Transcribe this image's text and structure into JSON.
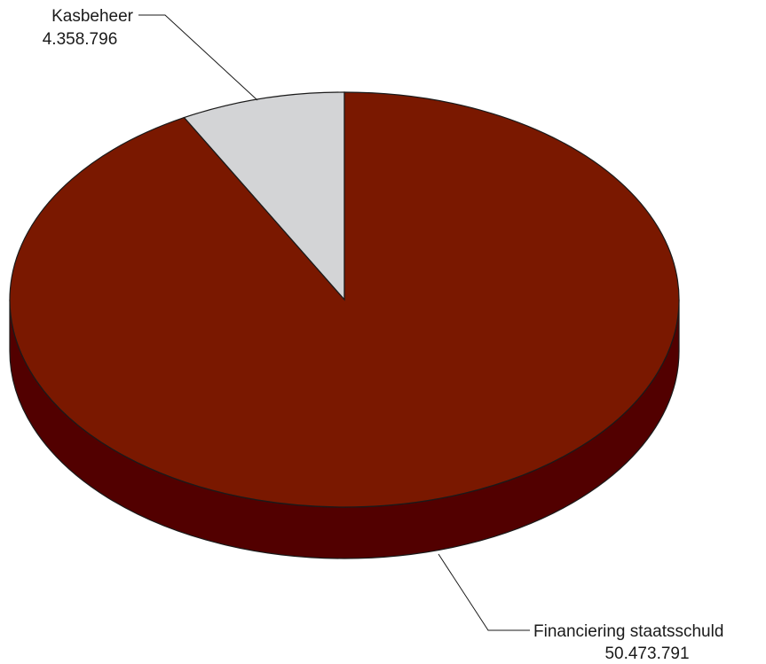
{
  "chart_data": {
    "type": "pie",
    "style": "3d",
    "start": "12 o'clock",
    "direction": "counterclockwise",
    "slices": [
      {
        "label": "Kasbeheer",
        "value_label": "4.358.796",
        "value": 4358796,
        "color": "#d3d4d6"
      },
      {
        "label": "Financiering staatsschuld",
        "value_label": "50.473.791",
        "value": 50473791,
        "color": "#7a1800",
        "side_color": "#520000"
      }
    ]
  }
}
